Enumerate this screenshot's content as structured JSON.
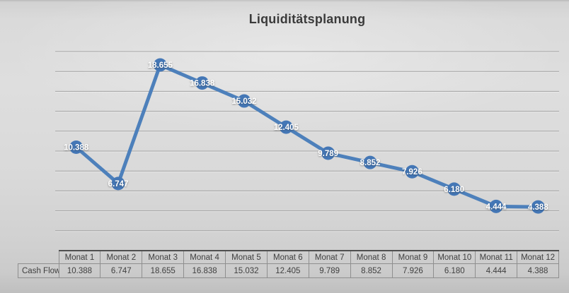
{
  "title": "Liquiditätsplanung",
  "colors": {
    "line_blue": "#4d80bb",
    "marker_blue": "#4477b6",
    "gridline": "#989898",
    "gridline_highlight": "#f0f0f0",
    "label_text": "#ffffff",
    "title_text": "#3b3b3b",
    "table_text": "#3f3f3f"
  },
  "chart_data": {
    "type": "line",
    "title": "Liquiditätsplanung",
    "series": [
      {
        "name": "Cash Flow",
        "values": [
          10.388,
          6.747,
          18.655,
          16.838,
          15.032,
          12.405,
          9.789,
          8.852,
          7.926,
          6.18,
          4.444,
          4.388
        ],
        "value_labels": [
          "10.388",
          "6.747",
          "18.655",
          "16.838",
          "15.032",
          "12.405",
          "9.789",
          "8.852",
          "7.926",
          "6.180",
          "4.444",
          "4.388"
        ]
      }
    ],
    "categories": [
      "Monat 1",
      "Monat 2",
      "Monat 3",
      "Monat 4",
      "Monat 5",
      "Monat 6",
      "Monat 7",
      "Monat 8",
      "Monat 9",
      "Monat 10",
      "Monat 11",
      "Monat 12"
    ],
    "xlabel": "",
    "ylabel": "",
    "ylim": [
      0,
      20
    ],
    "grid_step": 2,
    "grid": true,
    "y_axis_labels_shown": false,
    "legend": "none",
    "data_table_shown": true
  },
  "table": {
    "row_label": "Cash Flow",
    "headers": [
      "Monat 1",
      "Monat 2",
      "Monat 3",
      "Monat 4",
      "Monat 5",
      "Monat 6",
      "Monat 7",
      "Monat 8",
      "Monat 9",
      "Monat 10",
      "Monat 11",
      "Monat 12"
    ],
    "values": [
      "10.388",
      "6.747",
      "18.655",
      "16.838",
      "15.032",
      "12.405",
      "9.789",
      "8.852",
      "7.926",
      "6.180",
      "4.444",
      "4.388"
    ]
  }
}
